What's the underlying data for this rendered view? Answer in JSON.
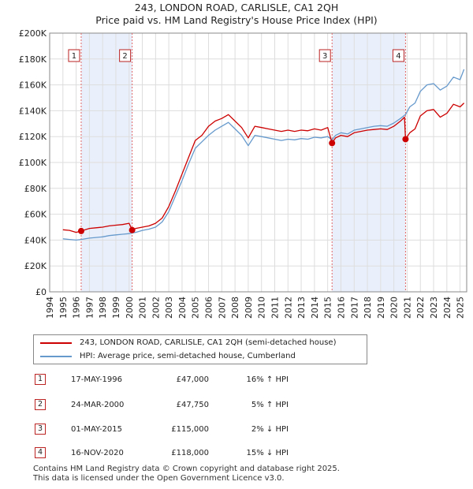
{
  "chart_data": {
    "type": "line",
    "title": "243, LONDON ROAD, CARLISLE, CA1 2QH",
    "subtitle": "Price paid vs. HM Land Registry's House Price Index (HPI)",
    "xlim": [
      1994,
      2025.5
    ],
    "ylim": [
      0,
      200000
    ],
    "x_ticks": [
      "1994",
      "1995",
      "1996",
      "1997",
      "1998",
      "1999",
      "2000",
      "2001",
      "2002",
      "2003",
      "2004",
      "2005",
      "2006",
      "2007",
      "2008",
      "2009",
      "2010",
      "2011",
      "2012",
      "2013",
      "2014",
      "2015",
      "2016",
      "2017",
      "2018",
      "2019",
      "2020",
      "2021",
      "2022",
      "2023",
      "2024",
      "2025"
    ],
    "y_ticks": [
      {
        "value": 0,
        "label": "£0"
      },
      {
        "value": 20000,
        "label": "£20K"
      },
      {
        "value": 40000,
        "label": "£40K"
      },
      {
        "value": 60000,
        "label": "£60K"
      },
      {
        "value": 80000,
        "label": "£80K"
      },
      {
        "value": 100000,
        "label": "£100K"
      },
      {
        "value": 120000,
        "label": "£120K"
      },
      {
        "value": 140000,
        "label": "£140K"
      },
      {
        "value": 160000,
        "label": "£160K"
      },
      {
        "value": 180000,
        "label": "£180K"
      },
      {
        "value": 200000,
        "label": "£200K"
      }
    ],
    "shaded_periods": [
      [
        1996.38,
        2000.23
      ],
      [
        2015.33,
        2020.88
      ]
    ],
    "series": [
      {
        "name": "243, LONDON ROAD, CARLISLE, CA1 2QH (semi-detached house)",
        "color": "#cc0000",
        "x": [
          1995.0,
          1995.5,
          1996.0,
          1996.38,
          1997.0,
          1997.5,
          1998.0,
          1998.5,
          1999.0,
          1999.5,
          2000.0,
          2000.23,
          2000.5,
          2001.0,
          2001.5,
          2002.0,
          2002.5,
          2003.0,
          2003.5,
          2004.0,
          2004.5,
          2005.0,
          2005.5,
          2006.0,
          2006.5,
          2007.0,
          2007.5,
          2008.0,
          2008.5,
          2009.0,
          2009.5,
          2010.0,
          2010.5,
          2011.0,
          2011.5,
          2012.0,
          2012.5,
          2013.0,
          2013.5,
          2014.0,
          2014.5,
          2015.0,
          2015.33,
          2015.6,
          2016.0,
          2016.5,
          2017.0,
          2017.5,
          2018.0,
          2018.5,
          2019.0,
          2019.5,
          2020.0,
          2020.5,
          2020.8,
          2020.88,
          2021.2,
          2021.6,
          2022.0,
          2022.5,
          2023.0,
          2023.5,
          2024.0,
          2024.5,
          2025.0,
          2025.3
        ],
        "y": [
          48000,
          47500,
          46000,
          47000,
          49000,
          49500,
          50000,
          51000,
          51500,
          52000,
          53000,
          47750,
          49000,
          50000,
          51000,
          53000,
          57000,
          66000,
          78000,
          91000,
          104000,
          117000,
          121000,
          128000,
          132000,
          134000,
          137000,
          132000,
          127000,
          119000,
          128000,
          127000,
          126000,
          125000,
          124000,
          125000,
          124000,
          125000,
          124500,
          126000,
          125000,
          127000,
          115000,
          119000,
          121000,
          120000,
          123000,
          124000,
          125000,
          125500,
          126000,
          125500,
          128000,
          132000,
          135000,
          118000,
          123000,
          126000,
          136000,
          140000,
          141000,
          135000,
          138000,
          145000,
          143000,
          146000
        ]
      },
      {
        "name": "HPI: Average price, semi-detached house, Cumberland",
        "color": "#6699cc",
        "x": [
          1995.0,
          1995.5,
          1996.0,
          1996.38,
          1997.0,
          1997.5,
          1998.0,
          1998.5,
          1999.0,
          1999.5,
          2000.0,
          2000.23,
          2000.5,
          2001.0,
          2001.5,
          2002.0,
          2002.5,
          2003.0,
          2003.5,
          2004.0,
          2004.5,
          2005.0,
          2005.5,
          2006.0,
          2006.5,
          2007.0,
          2007.5,
          2008.0,
          2008.5,
          2009.0,
          2009.5,
          2010.0,
          2010.5,
          2011.0,
          2011.5,
          2012.0,
          2012.5,
          2013.0,
          2013.5,
          2014.0,
          2014.5,
          2015.0,
          2015.33,
          2015.6,
          2016.0,
          2016.5,
          2017.0,
          2017.5,
          2018.0,
          2018.5,
          2019.0,
          2019.5,
          2020.0,
          2020.5,
          2020.8,
          2020.88,
          2021.2,
          2021.6,
          2022.0,
          2022.5,
          2023.0,
          2023.5,
          2024.0,
          2024.5,
          2025.0,
          2025.3
        ],
        "y": [
          41000,
          40500,
          40000,
          40500,
          41500,
          42000,
          42500,
          43500,
          44000,
          44500,
          45000,
          45500,
          46000,
          47500,
          48500,
          50000,
          54000,
          62000,
          74000,
          86000,
          99000,
          111000,
          116000,
          121000,
          125000,
          128000,
          131000,
          126000,
          121000,
          113000,
          121000,
          120000,
          119000,
          118000,
          117000,
          118000,
          117500,
          118500,
          118000,
          119500,
          119000,
          120000,
          117500,
          121000,
          123000,
          122000,
          125000,
          126000,
          127000,
          128000,
          128500,
          128000,
          130500,
          134000,
          136500,
          137000,
          143000,
          146000,
          155000,
          160000,
          161000,
          156000,
          159000,
          166000,
          164000,
          172000
        ]
      }
    ],
    "markers": [
      {
        "label": "1",
        "x": 1996.38,
        "y": 47000
      },
      {
        "label": "2",
        "x": 2000.23,
        "y": 47750
      },
      {
        "label": "3",
        "x": 2015.33,
        "y": 115000
      },
      {
        "label": "4",
        "x": 2020.88,
        "y": 118000
      }
    ]
  },
  "legend": {
    "price_label": "243, LONDON ROAD, CARLISLE, CA1 2QH (semi-detached house)",
    "hpi_label": "HPI: Average price, semi-detached house, Cumberland"
  },
  "transactions": [
    {
      "num": "1",
      "date": "17-MAY-1996",
      "price": "£47,000",
      "hpi": "16% ↑ HPI"
    },
    {
      "num": "2",
      "date": "24-MAR-2000",
      "price": "£47,750",
      "hpi": "5% ↑ HPI"
    },
    {
      "num": "3",
      "date": "01-MAY-2015",
      "price": "£115,000",
      "hpi": "2% ↓ HPI"
    },
    {
      "num": "4",
      "date": "16-NOV-2020",
      "price": "£118,000",
      "hpi": "15% ↓ HPI"
    }
  ],
  "footer": {
    "line1": "Contains HM Land Registry data © Crown copyright and database right 2025.",
    "line2": "This data is licensed under the Open Government Licence v3.0."
  },
  "colors": {
    "price": "#cc0000",
    "hpi": "#6699cc",
    "shade": "#eaf0fb",
    "grid": "#dddddd"
  }
}
